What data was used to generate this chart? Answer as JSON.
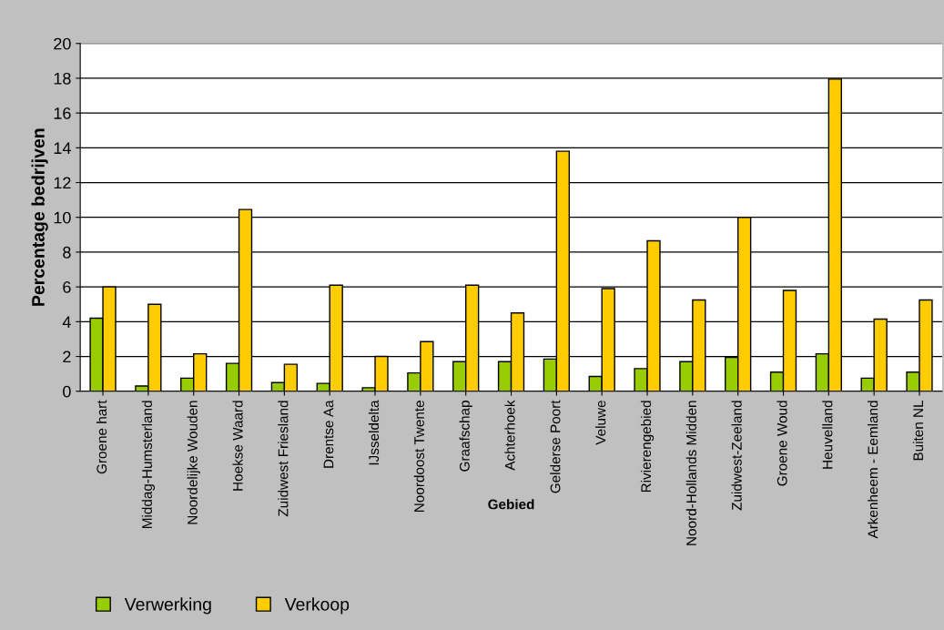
{
  "chart_data": {
    "type": "bar",
    "xlabel": "Gebied",
    "ylabel": "Percentage bedrijven",
    "categories": [
      "Groene hart",
      "Middag-Humsterland",
      "Noordelijke Wouden",
      "Hoekse Waard",
      "Zuidwest Friesland",
      "Drentse Aa",
      "IJsseldelta",
      "Noordoost Twente",
      "Graafschap",
      "Achterhoek",
      "Gelderse Poort",
      "Veluwe",
      "Rivierengebied",
      "Noord-Hollands Midden",
      "Zuidwest-Zeeland",
      "Groene Woud",
      "Heuvelland",
      "Arkenheem - Eemland",
      "Buiten NL"
    ],
    "series": [
      {
        "name": "Verwerking",
        "color": "#99cc00",
        "values": [
          4.2,
          0.3,
          0.75,
          1.6,
          0.5,
          0.45,
          0.2,
          1.05,
          1.7,
          1.7,
          1.85,
          0.85,
          1.3,
          1.7,
          1.95,
          1.1,
          2.15,
          0.75,
          1.1
        ]
      },
      {
        "name": "Verkoop",
        "color": "#ffcc00",
        "values": [
          6.0,
          5.0,
          2.15,
          10.45,
          1.55,
          6.1,
          2.0,
          2.85,
          6.1,
          4.5,
          13.8,
          5.9,
          8.65,
          5.25,
          10.0,
          5.8,
          17.95,
          4.15,
          5.25
        ]
      }
    ],
    "ylim": [
      0,
      20
    ],
    "yticks": [
      0,
      2,
      4,
      6,
      8,
      10,
      12,
      14,
      16,
      18,
      20
    ],
    "grid": "y",
    "legend": "bottom left"
  }
}
